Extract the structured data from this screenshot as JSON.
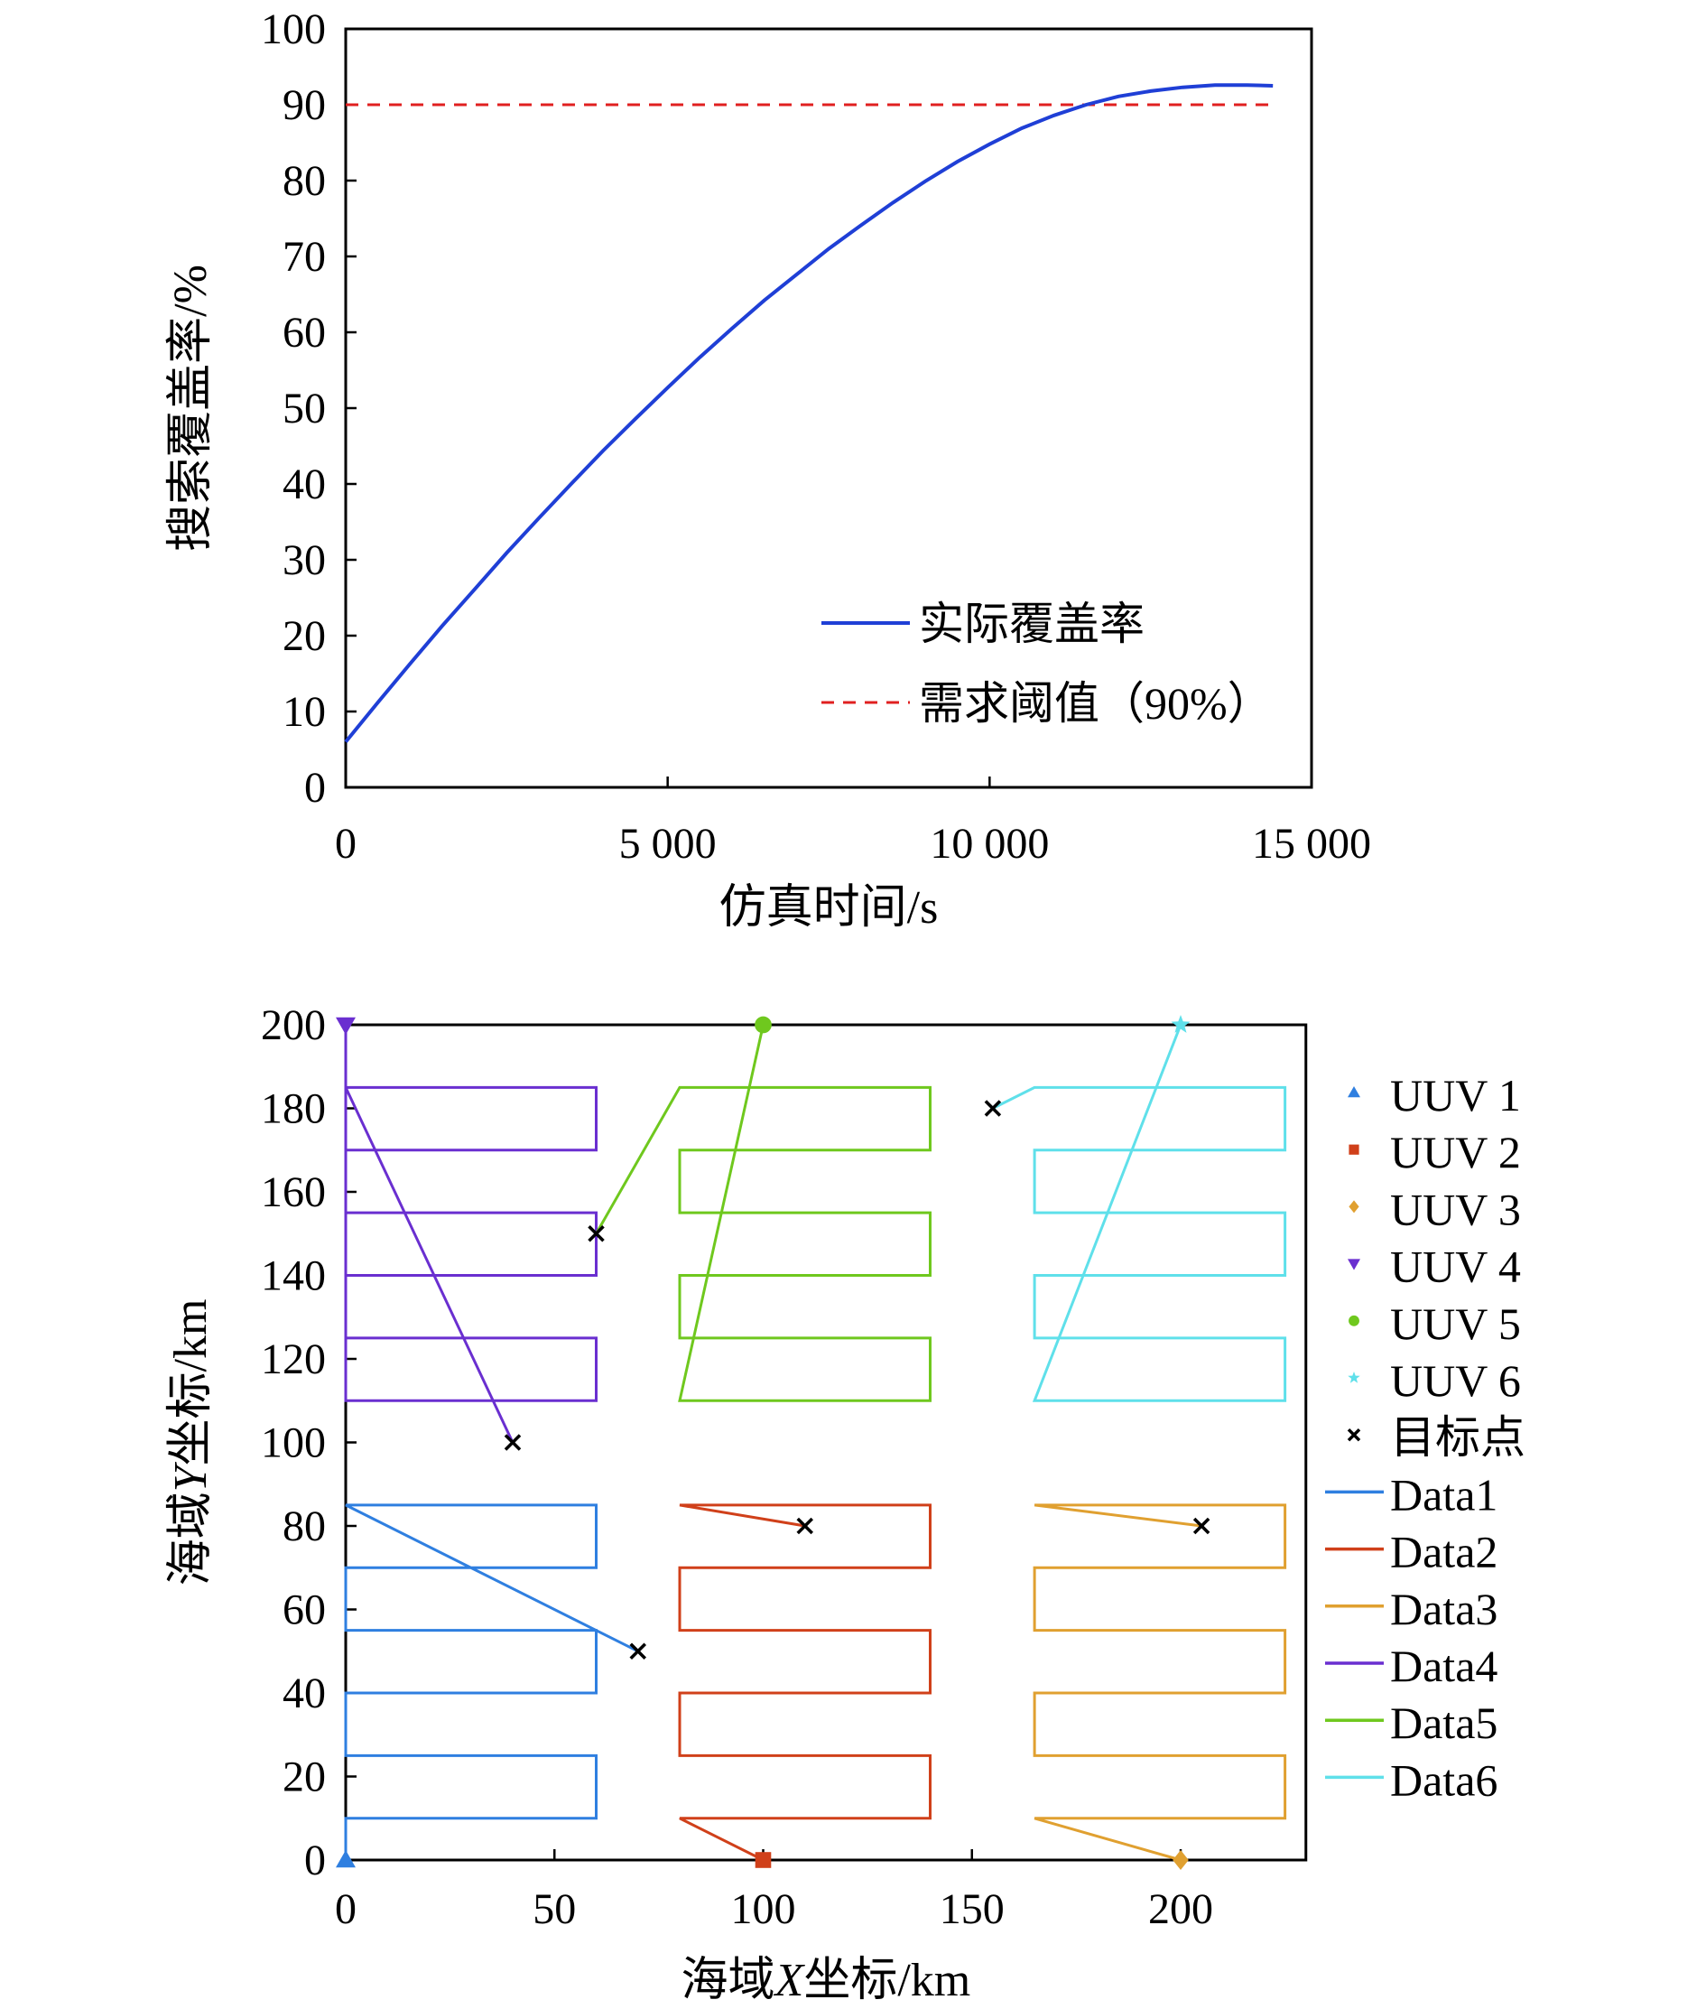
{
  "chart_data": [
    {
      "type": "line",
      "xlabel": "仿真时间/s",
      "ylabel": "搜索覆盖率/%",
      "xlim": [
        0,
        15000
      ],
      "ylim": [
        0,
        100
      ],
      "xticks": [
        0,
        5000,
        10000,
        15000
      ],
      "xtick_labels": [
        "0",
        "5 000",
        "10 000",
        "15 000"
      ],
      "yticks": [
        0,
        10,
        20,
        30,
        40,
        50,
        60,
        70,
        80,
        90,
        100
      ],
      "ytick_labels": [
        "0",
        "10",
        "20",
        "30",
        "40",
        "50",
        "60",
        "70",
        "80",
        "90",
        "100"
      ],
      "series": [
        {
          "name": "实际覆盖率",
          "color": "#1f3fd6",
          "style": "solid",
          "x": [
            0,
            500,
            1000,
            1500,
            2000,
            2500,
            3000,
            3500,
            4000,
            4500,
            5000,
            5500,
            6000,
            6500,
            7000,
            7500,
            8000,
            8500,
            9000,
            9500,
            10000,
            10500,
            11000,
            11500,
            12000,
            12500,
            13000,
            13500,
            14000,
            14400
          ],
          "y": [
            6,
            11.2,
            16.3,
            21.3,
            26.1,
            30.9,
            35.5,
            40.0,
            44.4,
            48.6,
            52.7,
            56.7,
            60.5,
            64.2,
            67.6,
            71.0,
            74.1,
            77.1,
            79.9,
            82.5,
            84.8,
            86.9,
            88.6,
            90.0,
            91.1,
            91.8,
            92.3,
            92.6,
            92.6,
            92.5
          ]
        },
        {
          "name": "需求阈值（90%）",
          "color": "#e02020",
          "style": "dashed",
          "x": [
            0,
            14400
          ],
          "y": [
            90,
            90
          ]
        }
      ]
    },
    {
      "type": "line",
      "xlabel_prefix": "海域",
      "xlabel_var": "X",
      "xlabel_suffix": "坐标/km",
      "ylabel_prefix": "海域",
      "ylabel_var": "Y",
      "ylabel_suffix": "坐标/km",
      "xlim": [
        0,
        230
      ],
      "ylim": [
        0,
        200
      ],
      "xticks": [
        0,
        50,
        100,
        150,
        200
      ],
      "yticks": [
        0,
        20,
        40,
        60,
        80,
        100,
        120,
        140,
        160,
        180,
        200
      ],
      "markers": [
        {
          "name": "UUV 1",
          "symbol": "triangle-up",
          "color": "#2f7fe0",
          "x": 0,
          "y": 0
        },
        {
          "name": "UUV 2",
          "symbol": "square",
          "color": "#d0401a",
          "x": 100,
          "y": 0
        },
        {
          "name": "UUV 3",
          "symbol": "diamond",
          "color": "#e0a030",
          "x": 200,
          "y": 0
        },
        {
          "name": "UUV 4",
          "symbol": "triangle-down",
          "color": "#6a2fd0",
          "x": 0,
          "y": 200
        },
        {
          "name": "UUV 5",
          "symbol": "circle",
          "color": "#6fc81e",
          "x": 100,
          "y": 200
        },
        {
          "name": "UUV 6",
          "symbol": "star",
          "color": "#5fe0ea",
          "x": 200,
          "y": 200
        }
      ],
      "targets": {
        "name": "目标点",
        "symbol": "x",
        "color": "#000000",
        "points": [
          [
            40,
            100
          ],
          [
            60,
            150
          ],
          [
            155,
            180
          ],
          [
            70,
            50
          ],
          [
            110,
            80
          ],
          [
            205,
            80
          ]
        ]
      },
      "series": [
        {
          "name": "Data1",
          "color": "#2f7fe0",
          "points": [
            [
              0,
              0
            ],
            [
              0,
              10
            ],
            [
              60,
              10
            ],
            [
              60,
              25
            ],
            [
              0,
              25
            ],
            [
              0,
              40
            ],
            [
              60,
              40
            ],
            [
              60,
              55
            ],
            [
              0,
              55
            ],
            [
              0,
              70
            ],
            [
              60,
              70
            ],
            [
              60,
              85
            ],
            [
              0,
              85
            ],
            [
              70,
              50
            ]
          ]
        },
        {
          "name": "Data2",
          "color": "#d0401a",
          "points": [
            [
              100,
              0
            ],
            [
              80,
              10
            ],
            [
              140,
              10
            ],
            [
              140,
              25
            ],
            [
              80,
              25
            ],
            [
              80,
              40
            ],
            [
              140,
              40
            ],
            [
              140,
              55
            ],
            [
              80,
              55
            ],
            [
              80,
              70
            ],
            [
              140,
              70
            ],
            [
              140,
              85
            ],
            [
              80,
              85
            ],
            [
              110,
              80
            ]
          ]
        },
        {
          "name": "Data3",
          "color": "#e0a030",
          "points": [
            [
              200,
              0
            ],
            [
              165,
              10
            ],
            [
              225,
              10
            ],
            [
              225,
              25
            ],
            [
              165,
              25
            ],
            [
              165,
              40
            ],
            [
              225,
              40
            ],
            [
              225,
              55
            ],
            [
              165,
              55
            ],
            [
              165,
              70
            ],
            [
              225,
              70
            ],
            [
              225,
              85
            ],
            [
              165,
              85
            ],
            [
              205,
              80
            ]
          ]
        },
        {
          "name": "Data4",
          "color": "#6a2fd0",
          "points": [
            [
              0,
              200
            ],
            [
              0,
              185
            ],
            [
              60,
              185
            ],
            [
              60,
              170
            ],
            [
              0,
              170
            ],
            [
              0,
              155
            ],
            [
              60,
              155
            ],
            [
              60,
              140
            ],
            [
              0,
              140
            ],
            [
              0,
              125
            ],
            [
              60,
              125
            ],
            [
              60,
              110
            ],
            [
              0,
              110
            ],
            [
              0,
              185
            ],
            [
              40,
              100
            ]
          ]
        },
        {
          "name": "Data5",
          "color": "#6fc81e",
          "points": [
            [
              100,
              200
            ],
            [
              80,
              110
            ],
            [
              140,
              110
            ],
            [
              140,
              125
            ],
            [
              80,
              125
            ],
            [
              80,
              140
            ],
            [
              140,
              140
            ],
            [
              140,
              155
            ],
            [
              80,
              155
            ],
            [
              80,
              170
            ],
            [
              140,
              170
            ],
            [
              140,
              185
            ],
            [
              80,
              185
            ],
            [
              60,
              150
            ]
          ]
        },
        {
          "name": "Data6",
          "color": "#5fe0ea",
          "points": [
            [
              200,
              200
            ],
            [
              165,
              110
            ],
            [
              225,
              110
            ],
            [
              225,
              125
            ],
            [
              165,
              125
            ],
            [
              165,
              140
            ],
            [
              225,
              140
            ],
            [
              225,
              155
            ],
            [
              165,
              155
            ],
            [
              165,
              170
            ],
            [
              225,
              170
            ],
            [
              225,
              185
            ],
            [
              165,
              185
            ],
            [
              155,
              180
            ]
          ]
        }
      ]
    }
  ]
}
